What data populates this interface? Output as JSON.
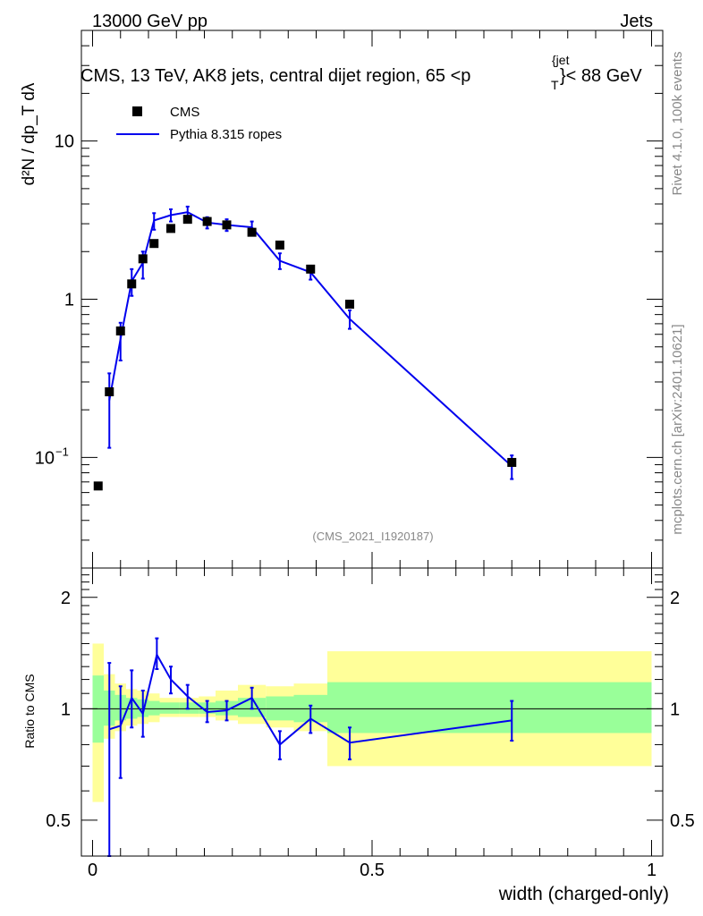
{
  "header": {
    "left": "13000 GeV pp",
    "right": "Jets"
  },
  "title": "CMS, 13 TeV, AK8 jets, central dijet region, 65 <p",
  "title_sup": "{jet",
  "title_sub": "T",
  "title_end": "}< 88 GeV",
  "side_text_top": "Rivet 4.1.0,  100k events",
  "side_text_bottom": "mcplots.cern.ch [arXiv:2401.10621]",
  "watermark": "(CMS_2021_I1920187)",
  "ylabel_main": "d²N / dp_T dλ",
  "ylabel_ratio": "Ratio to CMS",
  "xlabel": "width (charged-only)",
  "colors": {
    "data": "#000000",
    "mc": "#0000ee",
    "band_inner": "#99ff99",
    "band_outer": "#ffff99"
  },
  "chart_data": {
    "type": "scatter",
    "xlim": [
      -0.02,
      1.02
    ],
    "ylim_main": [
      0.02,
      50
    ],
    "ylim_ratio": [
      0.4,
      2.4
    ],
    "main_y_ticks": [
      {
        "value": 0.1,
        "label": "10",
        "sup": "−1"
      },
      {
        "value": 1,
        "label": "1",
        "sup": ""
      },
      {
        "value": 10,
        "label": "10",
        "sup": ""
      }
    ],
    "ratio_y_ticks": [
      {
        "value": 0.5,
        "label": "0.5"
      },
      {
        "value": 1,
        "label": "1"
      },
      {
        "value": 2,
        "label": "2"
      }
    ],
    "x_ticks": [
      {
        "value": 0,
        "label": "0"
      },
      {
        "value": 0.5,
        "label": "0.5"
      },
      {
        "value": 1,
        "label": "1"
      }
    ],
    "legend": [
      {
        "name": "CMS",
        "marker": "square"
      },
      {
        "name": "Pythia 8.315 ropes",
        "marker": "line"
      }
    ],
    "data_series": {
      "name": "CMS",
      "x": [
        0.01,
        0.03,
        0.05,
        0.07,
        0.09,
        0.11,
        0.14,
        0.17,
        0.205,
        0.24,
        0.285,
        0.335,
        0.39,
        0.46,
        0.75
      ],
      "y": [
        0.066,
        0.26,
        0.63,
        1.25,
        1.8,
        2.25,
        2.8,
        3.2,
        3.1,
        2.95,
        2.65,
        2.2,
        1.55,
        0.93,
        0.093
      ]
    },
    "mc_series": {
      "name": "Pythia 8.315 ropes",
      "x": [
        0.03,
        0.05,
        0.07,
        0.09,
        0.11,
        0.14,
        0.17,
        0.205,
        0.24,
        0.285,
        0.335,
        0.39,
        0.46,
        0.75
      ],
      "y": [
        0.23,
        0.56,
        1.3,
        1.7,
        3.15,
        3.4,
        3.55,
        3.05,
        2.95,
        2.85,
        1.75,
        1.48,
        0.75,
        0.088
      ],
      "err_low": [
        0.115,
        0.15,
        0.25,
        0.35,
        0.4,
        0.3,
        0.3,
        0.25,
        0.25,
        0.25,
        0.2,
        0.15,
        0.1,
        0.015
      ],
      "err_high": [
        0.11,
        0.15,
        0.25,
        0.3,
        0.35,
        0.3,
        0.3,
        0.25,
        0.25,
        0.25,
        0.2,
        0.15,
        0.1,
        0.015
      ]
    },
    "ratio_series": {
      "x": [
        0.03,
        0.05,
        0.07,
        0.09,
        0.115,
        0.14,
        0.17,
        0.205,
        0.24,
        0.285,
        0.335,
        0.39,
        0.46,
        0.75
      ],
      "y": [
        0.88,
        0.9,
        1.07,
        0.97,
        1.4,
        1.2,
        1.08,
        0.98,
        0.99,
        1.07,
        0.8,
        0.94,
        0.81,
        0.93
      ],
      "err_low": [
        0.48,
        0.25,
        0.18,
        0.13,
        0.12,
        0.1,
        0.08,
        0.06,
        0.06,
        0.07,
        0.07,
        0.08,
        0.08,
        0.11
      ],
      "err_high": [
        0.45,
        0.25,
        0.2,
        0.15,
        0.15,
        0.1,
        0.08,
        0.07,
        0.06,
        0.07,
        0.07,
        0.08,
        0.08,
        0.12
      ]
    },
    "bands": {
      "edges": [
        0.0,
        0.02,
        0.04,
        0.06,
        0.08,
        0.1,
        0.12,
        0.155,
        0.19,
        0.22,
        0.26,
        0.31,
        0.36,
        0.42,
        0.5,
        1.0
      ],
      "inner_low": [
        0.81,
        0.9,
        0.93,
        0.94,
        0.95,
        0.96,
        0.97,
        0.97,
        0.97,
        0.96,
        0.95,
        0.93,
        0.92,
        0.86,
        0.86
      ],
      "inner_high": [
        1.23,
        1.12,
        1.09,
        1.07,
        1.06,
        1.05,
        1.04,
        1.04,
        1.04,
        1.05,
        1.07,
        1.08,
        1.09,
        1.18,
        1.18
      ],
      "outer_low": [
        0.56,
        0.83,
        0.87,
        0.9,
        0.91,
        0.92,
        0.95,
        0.95,
        0.95,
        0.93,
        0.91,
        0.89,
        0.87,
        0.7,
        0.7
      ],
      "outer_high": [
        1.5,
        1.24,
        1.17,
        1.13,
        1.12,
        1.1,
        1.07,
        1.07,
        1.08,
        1.12,
        1.16,
        1.15,
        1.17,
        1.43,
        1.43
      ]
    }
  }
}
